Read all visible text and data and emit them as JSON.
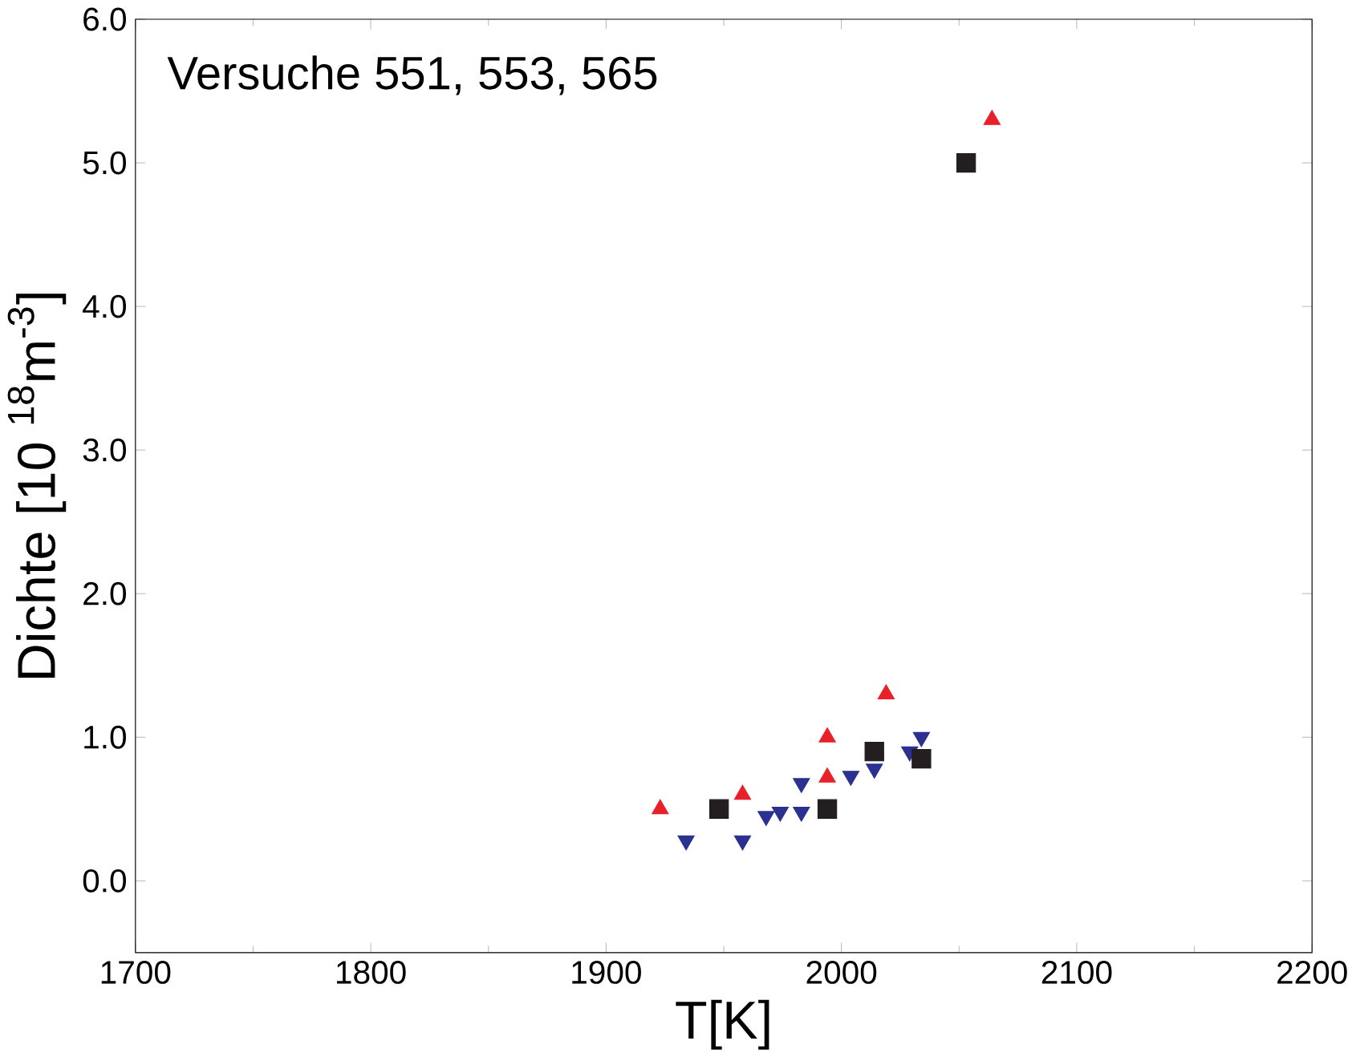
{
  "chart_data": {
    "type": "scatter",
    "xlabel": "T[K]",
    "ylabel": "Dichte [10 $^{18}$m$^{-3}$]",
    "annotations": [
      "Versuche 551, 553, 565"
    ],
    "xlim": [
      1700,
      2200
    ],
    "xticks": [
      1700,
      1800,
      1900,
      2000,
      2100,
      2200
    ],
    "ylim": [
      -0.5,
      6.0
    ],
    "yticks": [
      {
        "value": 0,
        "label": "0.0"
      },
      {
        "value": 1,
        "label": "1.0"
      },
      {
        "value": 2,
        "label": "2.0"
      },
      {
        "value": 3,
        "label": "3.0"
      },
      {
        "value": 4,
        "label": "4.0"
      },
      {
        "value": 5,
        "label": "5.0"
      },
      {
        "value": 6,
        "label": "6.0"
      }
    ],
    "grid": false,
    "series": [
      {
        "color": "#e8202a",
        "marker": "triangle",
        "x": [
          1923,
          1958,
          1994,
          1994,
          2019,
          2064
        ],
        "values": [
          0.5,
          0.6,
          1.0,
          0.72,
          1.3,
          5.3
        ]
      },
      {
        "color": "#2b3190",
        "marker": "triangle-down",
        "x": [
          1934,
          1958,
          1968,
          1974,
          1983,
          1983,
          2004,
          2014,
          2029,
          2034
        ],
        "values": [
          0.28,
          0.28,
          0.45,
          0.48,
          0.48,
          0.68,
          0.73,
          0.78,
          0.9,
          1.0
        ]
      },
      {
        "color": "#231f20",
        "marker": "square",
        "x": [
          1948,
          1994,
          2014,
          2034,
          2053
        ],
        "values": [
          0.5,
          0.5,
          0.9,
          0.85,
          5.0
        ]
      }
    ]
  }
}
